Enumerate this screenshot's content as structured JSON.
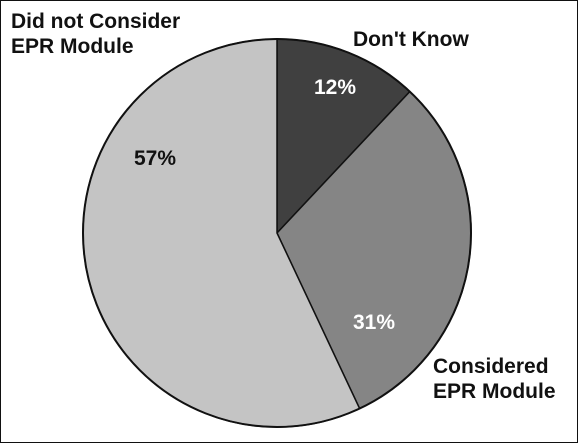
{
  "chart_data": {
    "type": "pie",
    "title": "",
    "slices": [
      {
        "label": "Don't Know",
        "value": 12,
        "display": "12%",
        "color": "#404040",
        "text_color": "#ffffff"
      },
      {
        "label": "Considered EPR Module",
        "value": 31,
        "display": "31%",
        "color": "#858585",
        "text_color": "#ffffff"
      },
      {
        "label": "Did not Consider EPR Module",
        "value": 57,
        "display": "57%",
        "color": "#c4c4c4",
        "text_color": "#111111"
      }
    ],
    "labels": {
      "did_not_consider": [
        "Did not Consider",
        "EPR Module"
      ],
      "dont_know": "Don't Know",
      "considered": [
        "Considered",
        "EPR Module"
      ]
    },
    "legend": "none",
    "start_angle": "12 o'clock",
    "direction": "clockwise"
  }
}
